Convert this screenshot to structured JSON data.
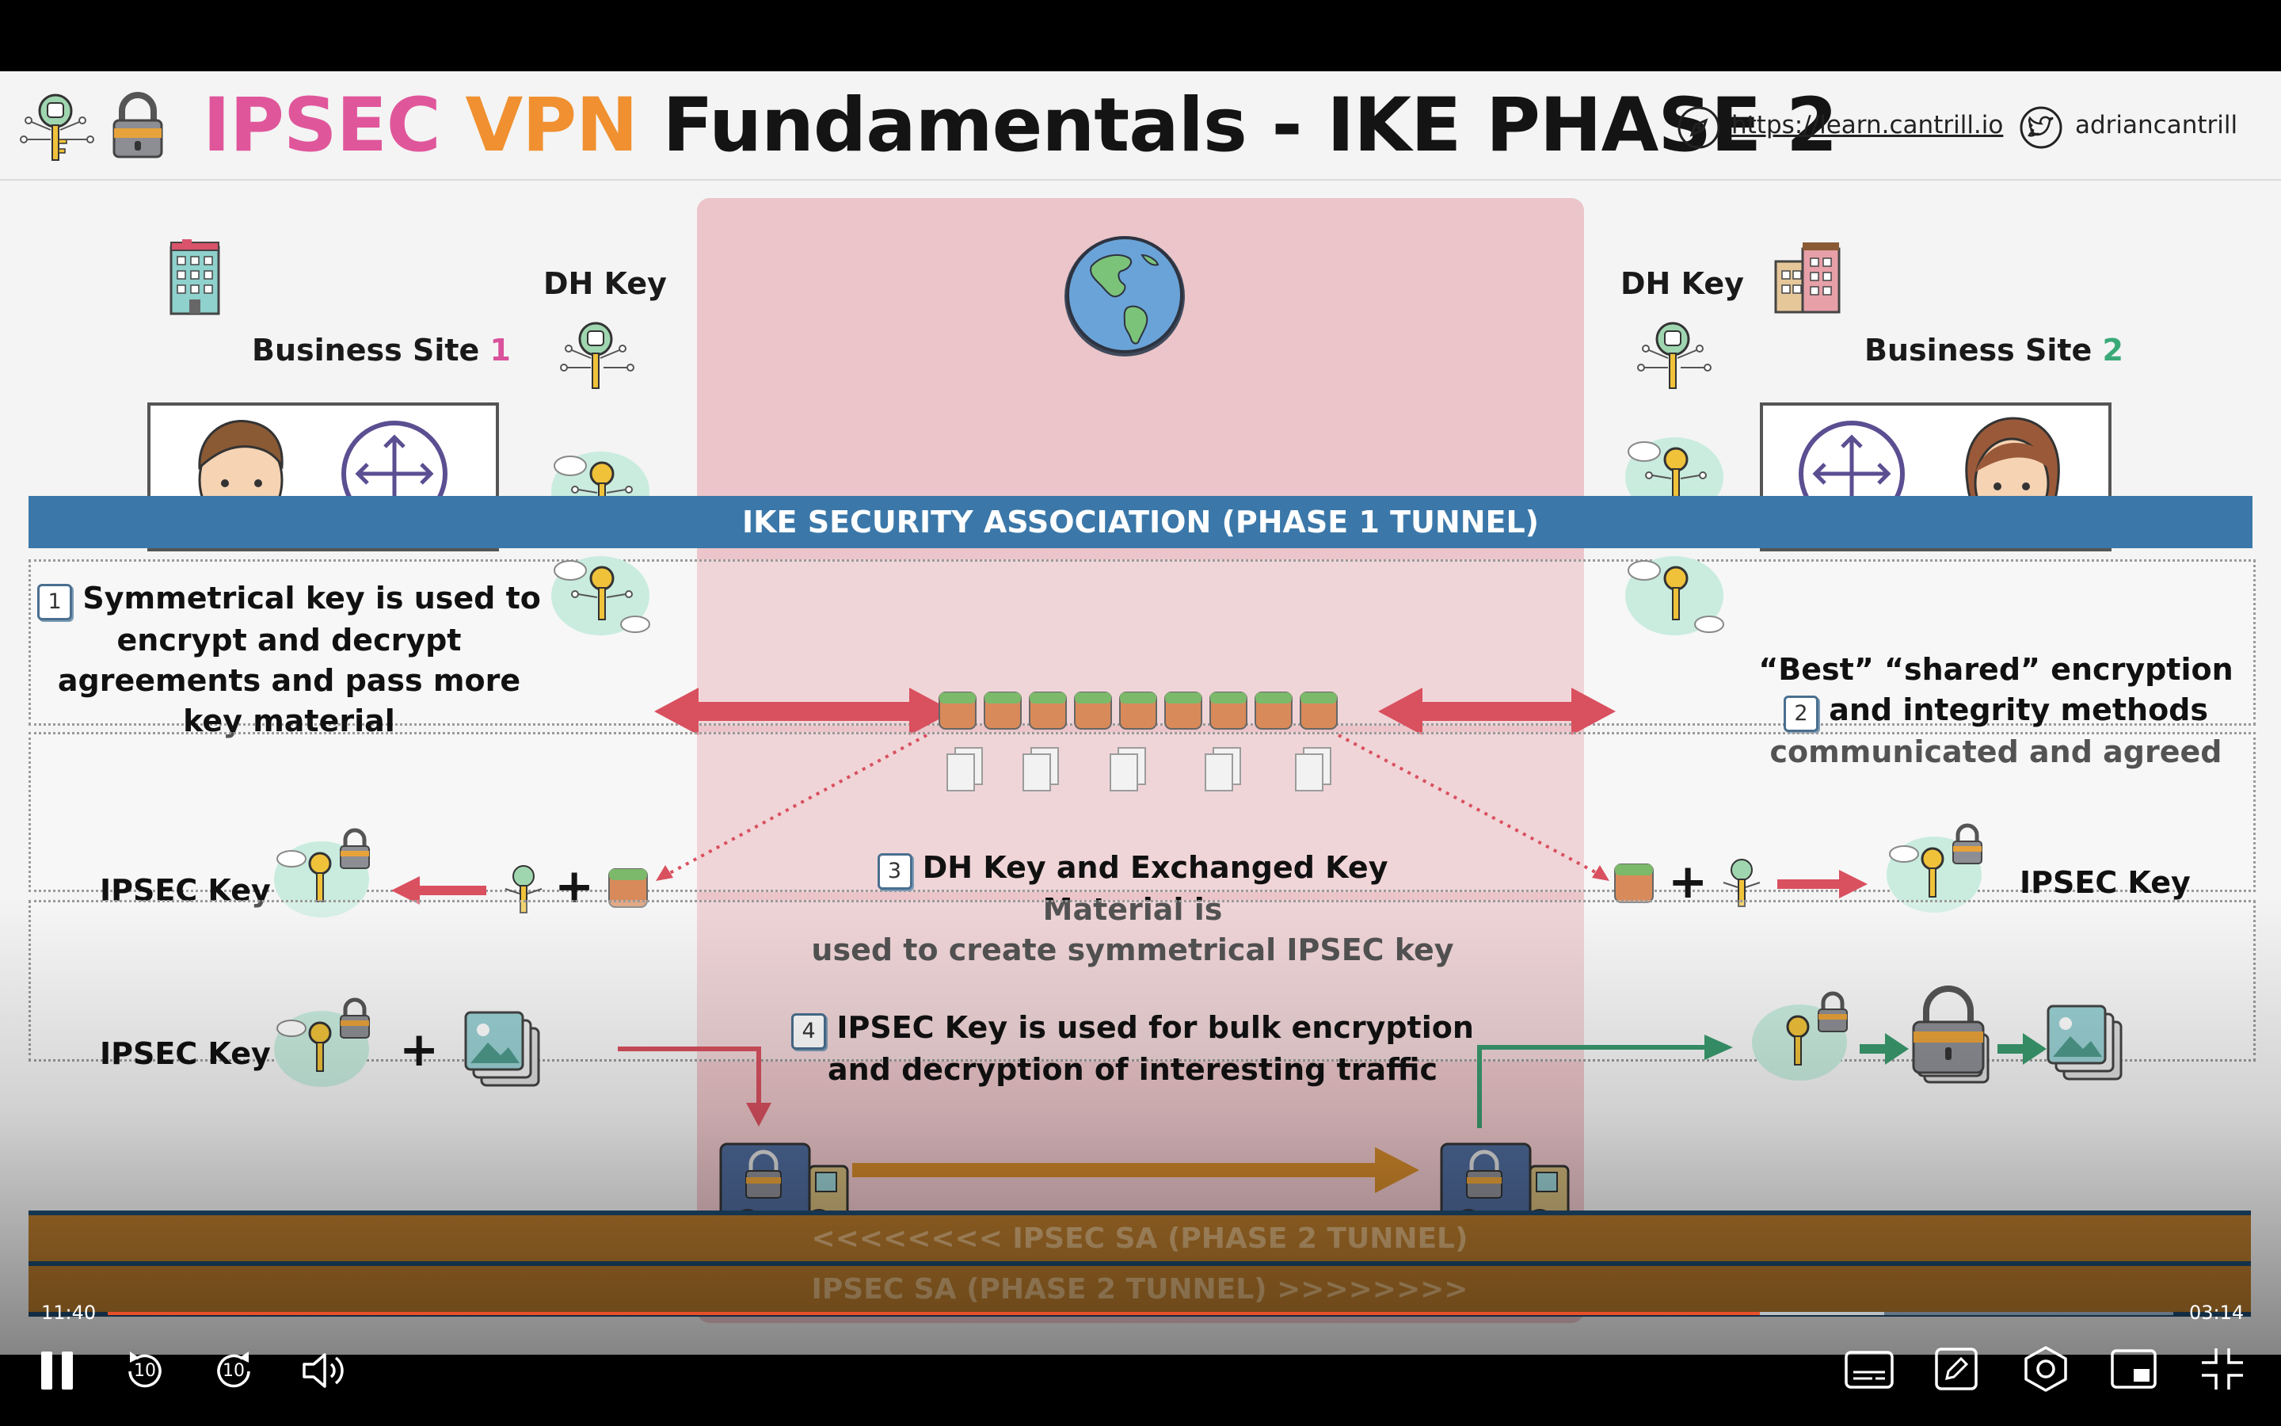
{
  "slide": {
    "title_part1": "IPSEC",
    "title_part2": "VPN",
    "title_part3": "Fundamentals - IKE PHASE 2",
    "website": "https://learn.cantrill.io",
    "twitter": "adriancantrill",
    "site1_label": "Business Site",
    "site1_number": "1",
    "site2_label": "Business Site",
    "site2_number": "2",
    "dh_key_left": "DH Key",
    "dh_key_right": "DH Key",
    "ike_bar": "IKE SECURITY ASSOCIATION (PHASE 1 TUNNEL)",
    "step1_num": "1",
    "step1_text": "Symmetrical key is used to encrypt and decrypt agreements and pass more key material",
    "step2_line1": "“Best” “shared” encryption",
    "step2_num": "2",
    "step2_line2": "and integrity methods",
    "step2_line3": "communicated and agreed",
    "ipsec_key_left": "IPSEC Key",
    "ipsec_key_right": "IPSEC Key",
    "step3_num": "3",
    "step3_line1": "DH Key and Exchanged Key Material is",
    "step3_line2": "used to create symmetrical IPSEC key",
    "ipsec_key_row3": "IPSEC Key",
    "step4_num": "4",
    "step4_line1": "IPSEC Key is used for bulk encryption",
    "step4_line2": "and decryption of interesting traffic",
    "tunnel_1": "<<<<<<<< IPSEC SA (PHASE 2 TUNNEL)",
    "tunnel_2": "IPSEC SA (PHASE 2 TUNNEL) >>>>>>>>",
    "colors": {
      "pink": "#e0569b",
      "orange": "#f09030",
      "site1_num": "#d9529b",
      "site2_num": "#3aa978",
      "ike_blue": "#3b78a9",
      "tunnel": "#b87a2c",
      "arrow_red": "#d9505f",
      "arrow_green": "#3a9a6e"
    }
  },
  "player": {
    "elapsed": "11:40",
    "remaining": "03:14",
    "progress": 0.8,
    "buffered": 0.86,
    "skip_back_label": "10",
    "skip_forward_label": "10",
    "icons": [
      "pause-icon",
      "rewind-10-icon",
      "forward-10-icon",
      "volume-icon",
      "captions-icon",
      "notes-icon",
      "settings-icon",
      "picture-in-picture-icon",
      "exit-fullscreen-icon"
    ]
  }
}
